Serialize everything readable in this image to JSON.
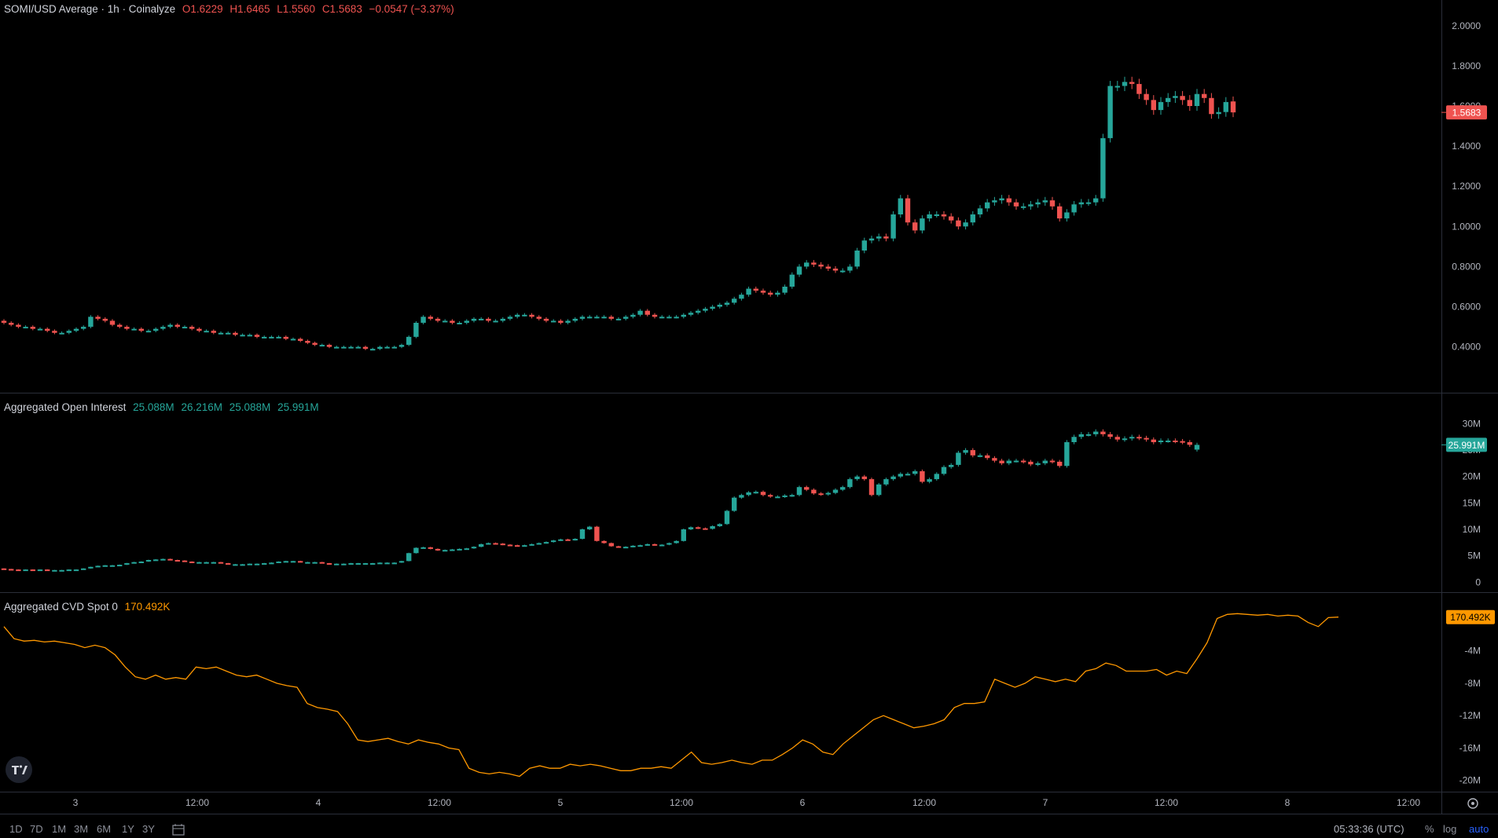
{
  "legend_price": {
    "pair": "SOMI/USD Average · 1h · Coinalyze",
    "o": "O1.6229",
    "h": "H1.6465",
    "l": "L1.5560",
    "c": "C1.5683",
    "chg": "−0.0547 (−3.37%)"
  },
  "legend_oi": {
    "name": "Aggregated Open Interest",
    "o": "25.088M",
    "h": "26.216M",
    "l": "25.088M",
    "c": "25.991M"
  },
  "legend_cvd": {
    "name": "Aggregated CVD Spot 0",
    "v": "170.492K"
  },
  "range_buttons": [
    "1D",
    "7D",
    "1M",
    "3M",
    "6M",
    "1Y",
    "3Y"
  ],
  "clock": "05:33:36 (UTC)",
  "scale_opts": {
    "pct": "%",
    "log": "log",
    "auto": "auto"
  },
  "colors": {
    "up": "#26a69a",
    "down": "#ef5350",
    "cvd": "#ff9800",
    "bg": "#000000",
    "grid": "#2a2e39"
  },
  "chart_data": [
    {
      "type": "candlestick",
      "title": "SOMI/USD Average · 1h · Coinalyze",
      "ylim": [
        0.25,
        2.05
      ],
      "y_ticks": [
        "2.0000",
        "1.8000",
        "1.6000",
        "1.4000",
        "1.2000",
        "1.0000",
        "0.8000",
        "0.6000",
        "0.4000"
      ],
      "last_value_label": "1.5683",
      "closes": [
        0.52,
        0.51,
        0.5,
        0.5,
        0.49,
        0.49,
        0.48,
        0.47,
        0.47,
        0.48,
        0.49,
        0.5,
        0.55,
        0.54,
        0.53,
        0.51,
        0.5,
        0.49,
        0.49,
        0.48,
        0.48,
        0.49,
        0.5,
        0.51,
        0.5,
        0.5,
        0.49,
        0.48,
        0.48,
        0.47,
        0.47,
        0.47,
        0.46,
        0.46,
        0.46,
        0.45,
        0.45,
        0.45,
        0.45,
        0.44,
        0.44,
        0.43,
        0.42,
        0.41,
        0.41,
        0.4,
        0.4,
        0.4,
        0.4,
        0.4,
        0.39,
        0.39,
        0.4,
        0.4,
        0.4,
        0.41,
        0.45,
        0.52,
        0.55,
        0.54,
        0.53,
        0.53,
        0.52,
        0.52,
        0.53,
        0.54,
        0.54,
        0.53,
        0.53,
        0.54,
        0.55,
        0.56,
        0.56,
        0.55,
        0.54,
        0.53,
        0.53,
        0.52,
        0.53,
        0.54,
        0.55,
        0.55,
        0.55,
        0.55,
        0.54,
        0.54,
        0.55,
        0.56,
        0.58,
        0.56,
        0.55,
        0.55,
        0.55,
        0.55,
        0.56,
        0.57,
        0.58,
        0.59,
        0.6,
        0.61,
        0.62,
        0.64,
        0.66,
        0.69,
        0.68,
        0.67,
        0.66,
        0.67,
        0.7,
        0.76,
        0.8,
        0.82,
        0.81,
        0.8,
        0.79,
        0.78,
        0.78,
        0.8,
        0.88,
        0.93,
        0.94,
        0.95,
        0.94,
        1.06,
        1.14,
        1.02,
        0.98,
        1.04,
        1.06,
        1.06,
        1.05,
        1.03,
        1.0,
        1.02,
        1.06,
        1.09,
        1.12,
        1.13,
        1.14,
        1.12,
        1.1,
        1.1,
        1.11,
        1.12,
        1.13,
        1.1,
        1.04,
        1.07,
        1.11,
        1.12,
        1.12,
        1.14,
        1.44,
        1.7,
        1.7,
        1.72,
        1.71,
        1.66,
        1.63,
        1.58,
        1.62,
        1.64,
        1.65,
        1.63,
        1.6,
        1.66,
        1.64,
        1.56,
        1.57,
        1.62,
        1.5683
      ],
      "opens": [
        0.53,
        0.52,
        0.51,
        0.5,
        0.5,
        0.49,
        0.49,
        0.48,
        0.47,
        0.47,
        0.48,
        0.49,
        0.5,
        0.55,
        0.54,
        0.53,
        0.51,
        0.5,
        0.49,
        0.49,
        0.48,
        0.48,
        0.49,
        0.5,
        0.51,
        0.5,
        0.5,
        0.49,
        0.48,
        0.48,
        0.47,
        0.47,
        0.47,
        0.46,
        0.46,
        0.46,
        0.45,
        0.45,
        0.45,
        0.45,
        0.44,
        0.44,
        0.43,
        0.42,
        0.41,
        0.41,
        0.4,
        0.4,
        0.4,
        0.4,
        0.4,
        0.39,
        0.39,
        0.4,
        0.4,
        0.4,
        0.41,
        0.45,
        0.52,
        0.55,
        0.54,
        0.53,
        0.53,
        0.52,
        0.52,
        0.53,
        0.54,
        0.54,
        0.53,
        0.53,
        0.54,
        0.55,
        0.56,
        0.56,
        0.55,
        0.54,
        0.53,
        0.53,
        0.52,
        0.53,
        0.54,
        0.55,
        0.55,
        0.55,
        0.55,
        0.54,
        0.54,
        0.55,
        0.56,
        0.58,
        0.56,
        0.55,
        0.55,
        0.55,
        0.55,
        0.56,
        0.57,
        0.58,
        0.59,
        0.6,
        0.61,
        0.62,
        0.64,
        0.66,
        0.69,
        0.68,
        0.67,
        0.66,
        0.67,
        0.7,
        0.76,
        0.8,
        0.82,
        0.81,
        0.8,
        0.79,
        0.78,
        0.78,
        0.8,
        0.88,
        0.93,
        0.94,
        0.95,
        0.94,
        1.06,
        1.14,
        1.02,
        0.98,
        1.04,
        1.06,
        1.06,
        1.05,
        1.03,
        1.0,
        1.02,
        1.06,
        1.09,
        1.12,
        1.13,
        1.14,
        1.12,
        1.1,
        1.1,
        1.11,
        1.12,
        1.13,
        1.1,
        1.04,
        1.07,
        1.11,
        1.12,
        1.12,
        1.14,
        1.44,
        1.7,
        1.7,
        1.72,
        1.71,
        1.66,
        1.63,
        1.58,
        1.62,
        1.64,
        1.65,
        1.63,
        1.6,
        1.66,
        1.64,
        1.56,
        1.57,
        1.6229
      ],
      "x_labels": [
        "3",
        "12:00",
        "4",
        "12:00",
        "5",
        "12:00",
        "6",
        "12:00",
        "7",
        "12:00",
        "8",
        "12:00"
      ]
    },
    {
      "type": "candlestick",
      "title": "Aggregated Open Interest",
      "unit": "M",
      "ylim": [
        -1,
        32
      ],
      "y_ticks": [
        "30M",
        "25M",
        "20M",
        "15M",
        "10M",
        "5M",
        "0"
      ],
      "last_value_label": "25.991M",
      "closes": [
        2.5,
        2.4,
        2.3,
        2.4,
        2.3,
        2.4,
        2.2,
        2.3,
        2.3,
        2.4,
        2.4,
        2.6,
        2.9,
        3.1,
        3.2,
        3.2,
        3.3,
        3.6,
        3.8,
        3.9,
        4.2,
        4.3,
        4.4,
        4.2,
        4.1,
        3.9,
        3.8,
        3.8,
        3.8,
        3.8,
        3.6,
        3.4,
        3.4,
        3.4,
        3.5,
        3.5,
        3.6,
        3.7,
        3.9,
        4.0,
        4.0,
        3.8,
        3.8,
        3.8,
        3.6,
        3.5,
        3.5,
        3.5,
        3.6,
        3.6,
        3.6,
        3.6,
        3.7,
        3.7,
        3.7,
        4.0,
        5.5,
        6.5,
        6.6,
        6.3,
        6.0,
        6.1,
        6.2,
        6.3,
        6.4,
        6.7,
        7.2,
        7.4,
        7.3,
        7.1,
        7.0,
        6.9,
        7.0,
        7.2,
        7.4,
        7.6,
        7.9,
        8.1,
        8.0,
        8.2,
        10.0,
        10.5,
        7.8,
        7.4,
        6.8,
        6.6,
        6.7,
        6.9,
        7.0,
        7.2,
        7.0,
        7.1,
        7.4,
        7.8,
        10.0,
        10.4,
        10.2,
        10.1,
        10.6,
        11.0,
        13.5,
        16.0,
        16.5,
        17.0,
        17.1,
        16.5,
        16.2,
        16.2,
        16.4,
        16.5,
        18.0,
        17.5,
        16.8,
        16.6,
        16.9,
        17.5,
        18.0,
        19.5,
        20.0,
        19.5,
        16.5,
        18.5,
        19.5,
        20.0,
        20.5,
        20.5,
        21.0,
        19.0,
        19.5,
        20.5,
        21.8,
        22.2,
        24.5,
        25.0,
        24.0,
        24.0,
        23.5,
        23.0,
        22.5,
        23.0,
        23.0,
        22.8,
        22.3,
        22.5,
        23.0,
        22.8,
        22.0,
        26.5,
        27.5,
        28.0,
        28.0,
        28.5,
        28.0,
        27.5,
        27.0,
        27.2,
        27.5,
        27.3,
        27.0,
        26.5,
        26.8,
        26.8,
        26.7,
        26.5,
        26.0,
        25.991
      ],
      "opens": [
        2.6,
        2.5,
        2.4,
        2.3,
        2.4,
        2.3,
        2.4,
        2.2,
        2.3,
        2.3,
        2.4,
        2.4,
        2.6,
        2.9,
        3.1,
        3.2,
        3.2,
        3.3,
        3.6,
        3.8,
        3.9,
        4.2,
        4.3,
        4.4,
        4.2,
        4.1,
        3.9,
        3.8,
        3.8,
        3.8,
        3.8,
        3.6,
        3.4,
        3.4,
        3.4,
        3.5,
        3.5,
        3.6,
        3.7,
        3.9,
        4.0,
        4.0,
        3.8,
        3.8,
        3.8,
        3.6,
        3.5,
        3.5,
        3.5,
        3.6,
        3.6,
        3.6,
        3.6,
        3.7,
        3.7,
        3.7,
        4.0,
        5.5,
        6.5,
        6.6,
        6.3,
        6.0,
        6.1,
        6.2,
        6.3,
        6.4,
        6.7,
        7.2,
        7.4,
        7.3,
        7.1,
        7.0,
        6.9,
        7.0,
        7.2,
        7.4,
        7.6,
        7.9,
        8.1,
        8.0,
        8.2,
        10.0,
        10.5,
        7.8,
        7.4,
        6.8,
        6.6,
        6.7,
        6.9,
        7.0,
        7.2,
        7.0,
        7.1,
        7.4,
        7.8,
        10.0,
        10.4,
        10.2,
        10.1,
        10.6,
        11.0,
        13.5,
        16.0,
        16.5,
        17.0,
        17.1,
        16.5,
        16.2,
        16.2,
        16.4,
        16.5,
        18.0,
        17.5,
        16.8,
        16.6,
        16.9,
        17.5,
        18.0,
        19.5,
        20.0,
        19.5,
        16.5,
        18.5,
        19.5,
        20.0,
        20.5,
        20.5,
        21.0,
        19.0,
        19.5,
        20.5,
        21.8,
        22.2,
        24.5,
        25.0,
        24.0,
        24.0,
        23.5,
        23.0,
        22.5,
        23.0,
        23.0,
        22.8,
        22.3,
        22.5,
        23.0,
        22.8,
        22.0,
        26.5,
        27.5,
        28.0,
        28.0,
        28.5,
        28.0,
        27.5,
        27.0,
        27.2,
        27.5,
        27.3,
        27.0,
        26.5,
        26.8,
        26.8,
        26.7,
        26.5,
        25.088
      ]
    },
    {
      "type": "line",
      "title": "Aggregated CVD Spot 0",
      "unit": "M",
      "ylim": [
        -21,
        1.5
      ],
      "y_ticks": [
        "-4M",
        "-8M",
        "-12M",
        "-16M",
        "-20M"
      ],
      "last_value_label": "170.492K",
      "values": [
        -1.0,
        -2.5,
        -2.8,
        -2.7,
        -2.9,
        -2.8,
        -3.0,
        -3.2,
        -3.6,
        -3.3,
        -3.6,
        -4.5,
        -6.0,
        -7.2,
        -7.5,
        -7.0,
        -7.5,
        -7.3,
        -7.5,
        -6.0,
        -6.2,
        -6.0,
        -6.5,
        -7.0,
        -7.2,
        -7.0,
        -7.5,
        -8.0,
        -8.3,
        -8.5,
        -10.5,
        -11.0,
        -11.2,
        -11.5,
        -13.0,
        -15.0,
        -15.2,
        -15.0,
        -14.8,
        -15.2,
        -15.5,
        -15.0,
        -15.3,
        -15.5,
        -16.0,
        -16.2,
        -18.5,
        -19.0,
        -19.2,
        -19.0,
        -19.2,
        -19.5,
        -18.5,
        -18.2,
        -18.5,
        -18.5,
        -18.0,
        -18.2,
        -18.0,
        -18.2,
        -18.5,
        -18.8,
        -18.8,
        -18.5,
        -18.5,
        -18.3,
        -18.5,
        -17.5,
        -16.5,
        -17.8,
        -18.0,
        -17.8,
        -17.5,
        -17.8,
        -18.0,
        -17.5,
        -17.5,
        -16.8,
        -16.0,
        -15.0,
        -15.5,
        -16.5,
        -16.8,
        -15.5,
        -14.5,
        -13.5,
        -12.5,
        -12.0,
        -12.5,
        -13.0,
        -13.5,
        -13.3,
        -13.0,
        -12.5,
        -11.0,
        -10.5,
        -10.5,
        -10.3,
        -7.5,
        -8.0,
        -8.5,
        -8.0,
        -7.2,
        -7.5,
        -7.8,
        -7.5,
        -7.8,
        -6.5,
        -6.2,
        -5.5,
        -5.8,
        -6.5,
        -6.5,
        -6.5,
        -6.3,
        -7.0,
        -6.5,
        -6.8,
        -5.0,
        -3.0,
        0.0,
        0.5,
        0.6,
        0.5,
        0.4,
        0.5,
        0.3,
        0.4,
        0.3,
        -0.5,
        -1.0,
        0.1,
        0.17
      ],
      "series_name": "Aggregated CVD Spot 0"
    }
  ]
}
